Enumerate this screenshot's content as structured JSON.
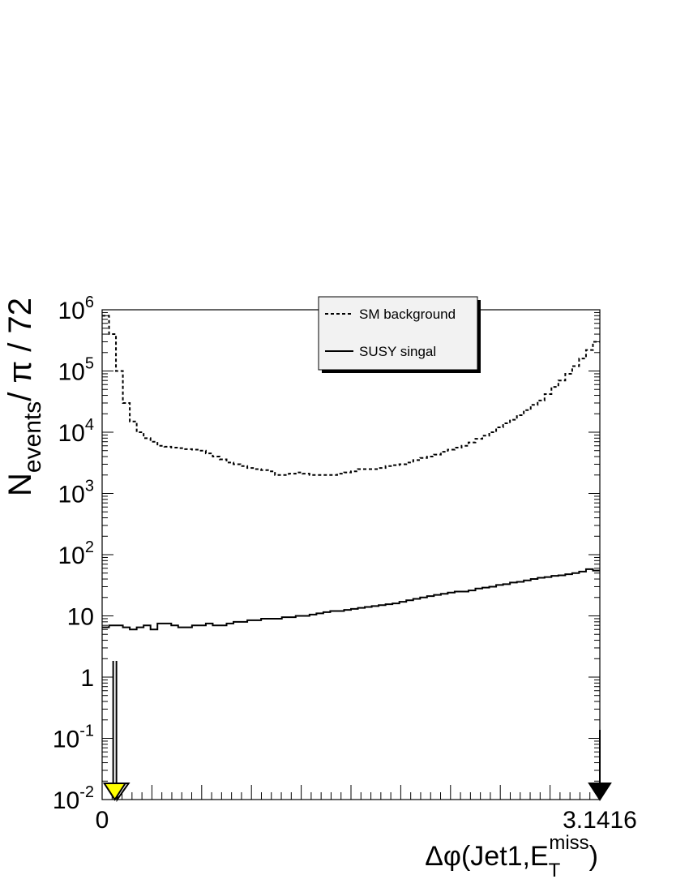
{
  "chart_data": {
    "type": "line",
    "xlabel": {
      "main": "Δφ(Jet1,E",
      "sub": "T",
      "sup": "miss",
      "close": ")"
    },
    "ylabel": {
      "main": "N",
      "sub": "events",
      "rest": "/ π / 72"
    },
    "xlim": [
      0,
      3.1416
    ],
    "ylim": [
      0.01,
      1000000
    ],
    "y_scale": "log",
    "x_tick_labels": [
      "0",
      "3.1416"
    ],
    "y_tick_labels": [
      {
        "value": 1000000,
        "base": "10",
        "exp": "6"
      },
      {
        "value": 100000,
        "base": "10",
        "exp": "5"
      },
      {
        "value": 10000,
        "base": "10",
        "exp": "4"
      },
      {
        "value": 1000,
        "base": "10",
        "exp": "3"
      },
      {
        "value": 100,
        "base": "10",
        "exp": "2"
      },
      {
        "value": 10,
        "base": "10",
        "exp": ""
      },
      {
        "value": 1,
        "base": "1",
        "exp": ""
      },
      {
        "value": 0.1,
        "base": "10",
        "exp": "-1"
      },
      {
        "value": 0.01,
        "base": "10",
        "exp": "-2"
      }
    ],
    "legend": {
      "position": "top-center",
      "entries": [
        {
          "label": "SM background",
          "style": "dashed"
        },
        {
          "label": "SUSY singal",
          "style": "solid"
        }
      ]
    },
    "series": [
      {
        "name": "SM background",
        "style": "dashed",
        "values": [
          800000,
          400000,
          100000,
          30000,
          15000,
          10000,
          8000,
          7000,
          6000,
          5800,
          5600,
          5500,
          5300,
          5200,
          5000,
          4500,
          4000,
          3600,
          3200,
          3000,
          2800,
          2600,
          2500,
          2400,
          2300,
          2000,
          2000,
          2100,
          2200,
          2100,
          2000,
          2000,
          2000,
          2000,
          2100,
          2200,
          2300,
          2500,
          2500,
          2500,
          2600,
          2800,
          2900,
          3000,
          3200,
          3500,
          3800,
          4000,
          4300,
          4800,
          5200,
          5600,
          6000,
          6800,
          7800,
          8800,
          10000,
          12000,
          14000,
          16000,
          19000,
          23000,
          28000,
          33000,
          42000,
          55000,
          70000,
          90000,
          120000,
          160000,
          220000,
          300000
        ]
      },
      {
        "name": "SUSY singal",
        "style": "solid",
        "values": [
          6.5,
          7.0,
          7.0,
          6.5,
          6.0,
          6.5,
          7.0,
          6.0,
          7.5,
          7.5,
          7.0,
          6.5,
          6.5,
          7.0,
          7.0,
          7.5,
          7.0,
          7.0,
          7.5,
          8.0,
          8.0,
          8.5,
          8.5,
          9.0,
          9.0,
          9.0,
          9.5,
          9.5,
          10,
          10,
          10.5,
          11,
          11.5,
          12,
          12,
          12.5,
          13,
          13.5,
          14,
          14.5,
          15,
          15.5,
          16,
          17,
          18,
          19,
          20,
          21,
          22,
          23,
          24,
          25,
          25,
          26,
          28,
          29,
          30,
          32,
          33,
          35,
          36,
          38,
          40,
          42,
          43,
          45,
          46,
          48,
          50,
          53,
          58,
          55
        ]
      }
    ],
    "annotations": [
      {
        "type": "arrow-down",
        "x": 0.08,
        "fill": "#ffff00",
        "style": "double-shaft"
      },
      {
        "type": "arrow-down",
        "x": 3.1416,
        "fill": "#000000",
        "style": "single-shaft"
      }
    ]
  }
}
